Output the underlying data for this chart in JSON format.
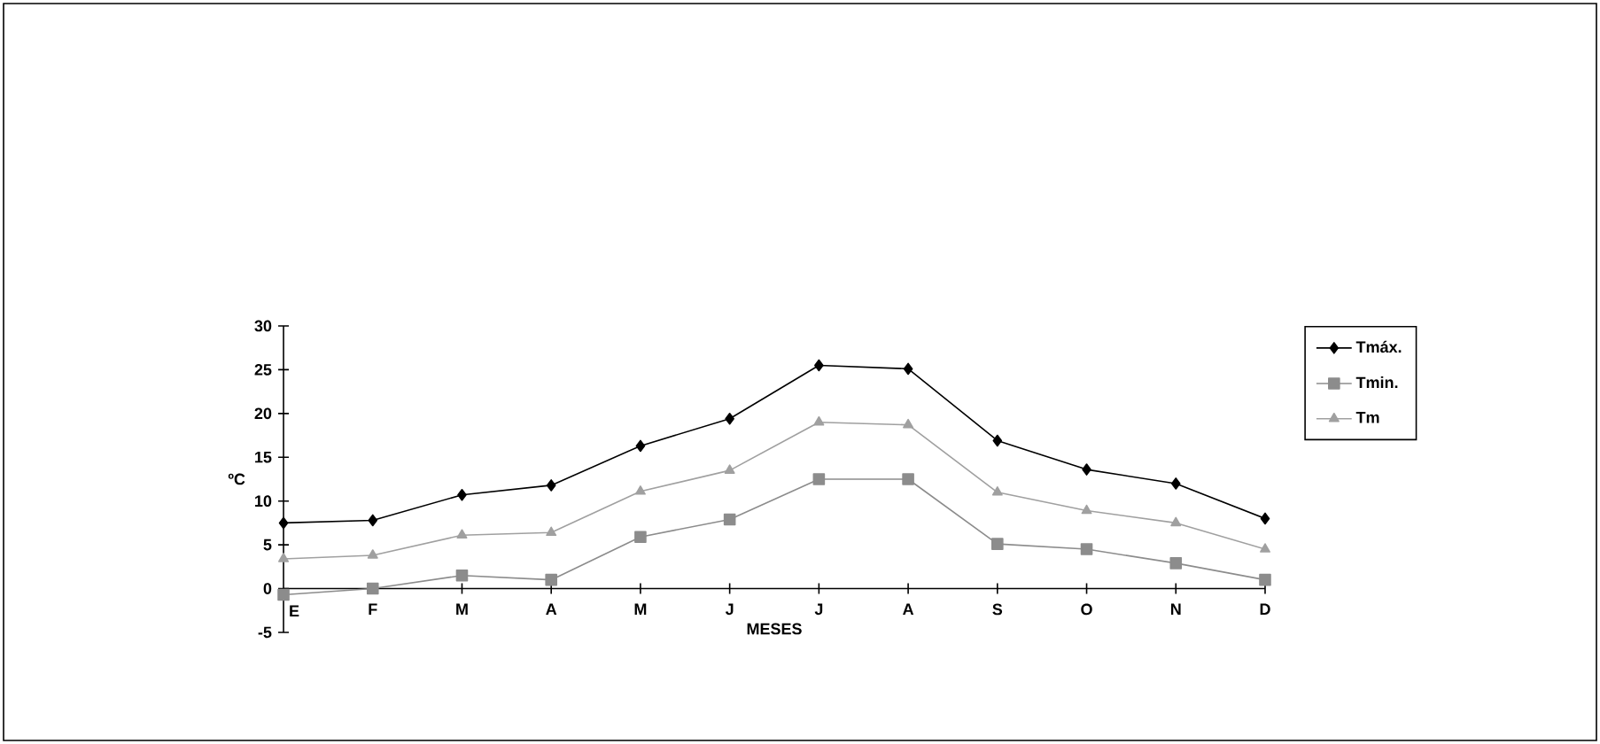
{
  "chart_data": {
    "type": "line",
    "xlabel": "MESES",
    "ylabel": "ºC",
    "categories": [
      "E",
      "F",
      "M",
      "A",
      "M",
      "J",
      "J",
      "A",
      "S",
      "O",
      "N",
      "D"
    ],
    "ylim": [
      -5,
      30
    ],
    "yticks": [
      -5,
      0,
      5,
      10,
      15,
      20,
      25,
      30
    ],
    "grid": false,
    "legend": "top right",
    "series": [
      {
        "name": "Tmáx.",
        "color": "#000000",
        "marker": "diamond",
        "values": [
          7.5,
          7.8,
          10.7,
          11.8,
          16.3,
          19.4,
          25.5,
          25.1,
          16.9,
          13.6,
          12.0,
          8.0
        ]
      },
      {
        "name": "Tmin.",
        "color": "#8c8c8c",
        "marker": "square",
        "values": [
          -0.7,
          0.0,
          1.5,
          1.0,
          5.9,
          7.9,
          12.5,
          12.5,
          5.1,
          4.5,
          2.9,
          1.0
        ]
      },
      {
        "name": "Tm",
        "color": "#a0a0a0",
        "marker": "triangle",
        "values": [
          3.4,
          3.8,
          6.1,
          6.4,
          11.1,
          13.5,
          19.0,
          18.7,
          11.0,
          8.9,
          7.5,
          4.5
        ]
      }
    ]
  }
}
